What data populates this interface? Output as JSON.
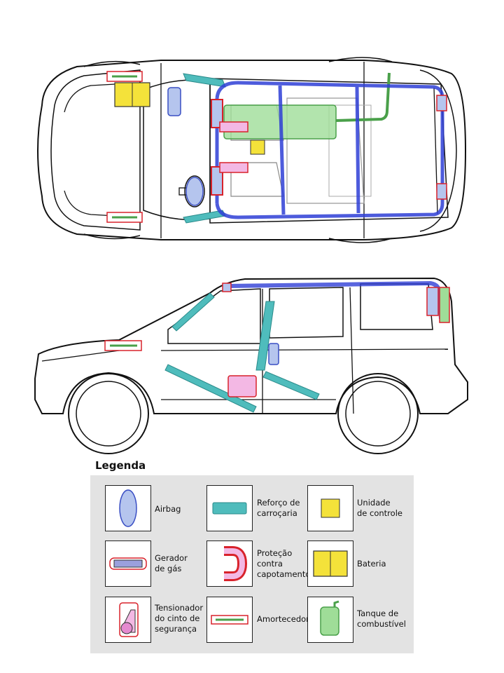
{
  "legend": {
    "title": "Legenda",
    "items": [
      {
        "key": "airbag",
        "label": "Airbag"
      },
      {
        "key": "reinforcement",
        "label": "Reforço de\ncarroçaria"
      },
      {
        "key": "control-unit",
        "label": "Unidade\nde controle"
      },
      {
        "key": "gas-generator",
        "label": "Gerador\nde gás"
      },
      {
        "key": "rollover",
        "label": "Proteção\ncontra\ncapotamento"
      },
      {
        "key": "battery",
        "label": "Bateria"
      },
      {
        "key": "tensioner",
        "label": "Tensionador\ndo cinto de\nsegurança"
      },
      {
        "key": "damper",
        "label": "Amortecedor"
      },
      {
        "key": "fuel-tank",
        "label": "Tanque de\ncombustível"
      }
    ]
  },
  "colors": {
    "airbag": "#b5c5ee",
    "airbag_stroke": "#3a4fc4",
    "reinforcement": "#4fbcbc",
    "red_outline": "#d8222b",
    "pink": "#e58ad0",
    "battery": "#f4e23a",
    "fuel": "#9fdd98",
    "fuel_stroke": "#4aa04a",
    "blue_tube": "#2f3fd6"
  }
}
